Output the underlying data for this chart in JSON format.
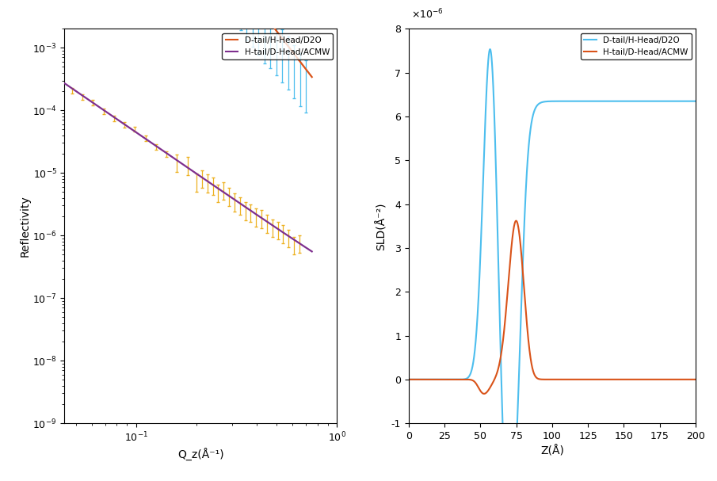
{
  "left_panel": {
    "xlabel": "Q_z(Å⁻¹)",
    "ylabel": "Reflectivity",
    "xlim": [
      0.044,
      1.0
    ],
    "ylim": [
      1e-09,
      0.002
    ],
    "curve1_color": "#d95319",
    "curve2_color": "#7e2f8e",
    "data1_color": "#4dbeee",
    "data2_color": "#edb120",
    "legend": [
      "D-tail/H-Head/D2O",
      "H-tail/D-Head/ACMW"
    ]
  },
  "right_panel": {
    "xlabel": "Z(Å)",
    "ylabel": "SLD(Å⁻²)",
    "xlim": [
      0,
      200
    ],
    "ylim": [
      -1e-06,
      8e-06
    ],
    "curve1_color": "#4dbeee",
    "curve2_color": "#d95319",
    "legend": [
      "D-tail/H-Head/D2O",
      "H-tail/D-Head/ACMW"
    ]
  }
}
